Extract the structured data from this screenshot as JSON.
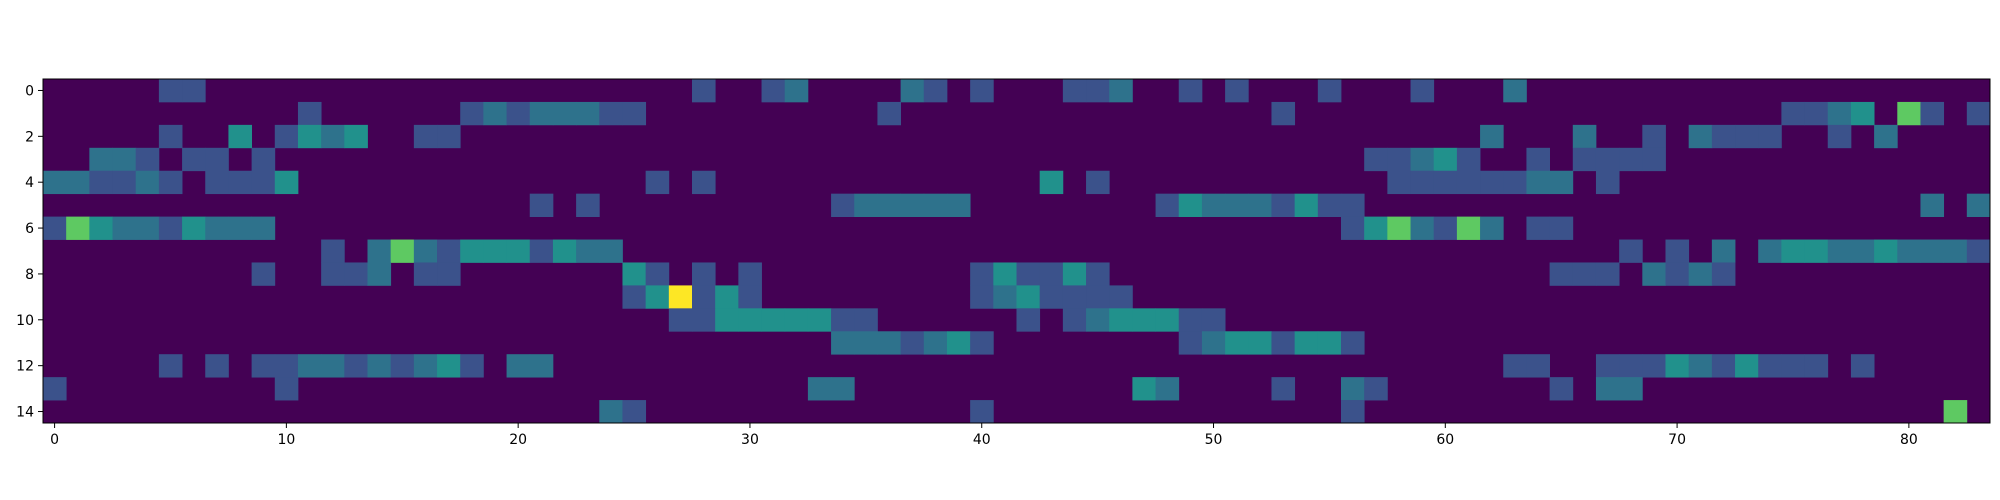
{
  "chart_data": {
    "type": "heatmap",
    "title": "",
    "xlabel": "",
    "ylabel": "",
    "n_rows": 15,
    "n_cols": 84,
    "x_ticks": [
      0,
      10,
      20,
      30,
      40,
      50,
      60,
      70,
      80
    ],
    "y_ticks": [
      0,
      2,
      4,
      6,
      8,
      10,
      12,
      14
    ],
    "vmin": 0,
    "vmax": 8,
    "colormap": "viridis",
    "colormap_stops": [
      "#440154",
      "#3b528b",
      "#21918c",
      "#5ec962",
      "#fde725"
    ],
    "grid": false,
    "cells": [
      {
        "r": 0,
        "c": 5,
        "v": 2
      },
      {
        "r": 0,
        "c": 6,
        "v": 2
      },
      {
        "r": 0,
        "c": 28,
        "v": 2
      },
      {
        "r": 0,
        "c": 31,
        "v": 2
      },
      {
        "r": 0,
        "c": 32,
        "v": 3
      },
      {
        "r": 0,
        "c": 37,
        "v": 3
      },
      {
        "r": 0,
        "c": 38,
        "v": 2
      },
      {
        "r": 0,
        "c": 40,
        "v": 2
      },
      {
        "r": 0,
        "c": 44,
        "v": 2
      },
      {
        "r": 0,
        "c": 45,
        "v": 2
      },
      {
        "r": 0,
        "c": 46,
        "v": 3
      },
      {
        "r": 0,
        "c": 49,
        "v": 2
      },
      {
        "r": 0,
        "c": 51,
        "v": 2
      },
      {
        "r": 0,
        "c": 55,
        "v": 2
      },
      {
        "r": 0,
        "c": 59,
        "v": 2
      },
      {
        "r": 0,
        "c": 63,
        "v": 3
      },
      {
        "r": 1,
        "c": 11,
        "v": 2
      },
      {
        "r": 1,
        "c": 18,
        "v": 2
      },
      {
        "r": 1,
        "c": 19,
        "v": 3
      },
      {
        "r": 1,
        "c": 20,
        "v": 2
      },
      {
        "r": 1,
        "c": 21,
        "v": 3
      },
      {
        "r": 1,
        "c": 22,
        "v": 3
      },
      {
        "r": 1,
        "c": 23,
        "v": 3
      },
      {
        "r": 1,
        "c": 24,
        "v": 2
      },
      {
        "r": 1,
        "c": 25,
        "v": 2
      },
      {
        "r": 1,
        "c": 36,
        "v": 2
      },
      {
        "r": 1,
        "c": 53,
        "v": 2
      },
      {
        "r": 1,
        "c": 75,
        "v": 2
      },
      {
        "r": 1,
        "c": 76,
        "v": 2
      },
      {
        "r": 1,
        "c": 77,
        "v": 3
      },
      {
        "r": 1,
        "c": 78,
        "v": 4
      },
      {
        "r": 1,
        "c": 80,
        "v": 6
      },
      {
        "r": 1,
        "c": 81,
        "v": 2
      },
      {
        "r": 1,
        "c": 83,
        "v": 2
      },
      {
        "r": 2,
        "c": 5,
        "v": 2
      },
      {
        "r": 2,
        "c": 8,
        "v": 4
      },
      {
        "r": 2,
        "c": 10,
        "v": 2
      },
      {
        "r": 2,
        "c": 11,
        "v": 4
      },
      {
        "r": 2,
        "c": 12,
        "v": 3
      },
      {
        "r": 2,
        "c": 13,
        "v": 4
      },
      {
        "r": 2,
        "c": 16,
        "v": 2
      },
      {
        "r": 2,
        "c": 17,
        "v": 2
      },
      {
        "r": 2,
        "c": 62,
        "v": 3
      },
      {
        "r": 2,
        "c": 66,
        "v": 3
      },
      {
        "r": 2,
        "c": 69,
        "v": 2
      },
      {
        "r": 2,
        "c": 71,
        "v": 3
      },
      {
        "r": 2,
        "c": 72,
        "v": 2
      },
      {
        "r": 2,
        "c": 73,
        "v": 2
      },
      {
        "r": 2,
        "c": 74,
        "v": 2
      },
      {
        "r": 2,
        "c": 77,
        "v": 2
      },
      {
        "r": 2,
        "c": 79,
        "v": 3
      },
      {
        "r": 3,
        "c": 2,
        "v": 3
      },
      {
        "r": 3,
        "c": 3,
        "v": 3
      },
      {
        "r": 3,
        "c": 4,
        "v": 2
      },
      {
        "r": 3,
        "c": 6,
        "v": 2
      },
      {
        "r": 3,
        "c": 7,
        "v": 2
      },
      {
        "r": 3,
        "c": 9,
        "v": 2
      },
      {
        "r": 3,
        "c": 57,
        "v": 2
      },
      {
        "r": 3,
        "c": 58,
        "v": 2
      },
      {
        "r": 3,
        "c": 59,
        "v": 3
      },
      {
        "r": 3,
        "c": 60,
        "v": 4
      },
      {
        "r": 3,
        "c": 61,
        "v": 2
      },
      {
        "r": 3,
        "c": 64,
        "v": 2
      },
      {
        "r": 3,
        "c": 66,
        "v": 2
      },
      {
        "r": 3,
        "c": 67,
        "v": 2
      },
      {
        "r": 3,
        "c": 68,
        "v": 2
      },
      {
        "r": 3,
        "c": 69,
        "v": 2
      },
      {
        "r": 4,
        "c": 0,
        "v": 3
      },
      {
        "r": 4,
        "c": 1,
        "v": 3
      },
      {
        "r": 4,
        "c": 2,
        "v": 2
      },
      {
        "r": 4,
        "c": 3,
        "v": 2
      },
      {
        "r": 4,
        "c": 4,
        "v": 3
      },
      {
        "r": 4,
        "c": 5,
        "v": 2
      },
      {
        "r": 4,
        "c": 7,
        "v": 2
      },
      {
        "r": 4,
        "c": 8,
        "v": 2
      },
      {
        "r": 4,
        "c": 9,
        "v": 2
      },
      {
        "r": 4,
        "c": 10,
        "v": 4
      },
      {
        "r": 4,
        "c": 26,
        "v": 2
      },
      {
        "r": 4,
        "c": 28,
        "v": 2
      },
      {
        "r": 4,
        "c": 43,
        "v": 4
      },
      {
        "r": 4,
        "c": 45,
        "v": 2
      },
      {
        "r": 4,
        "c": 58,
        "v": 2
      },
      {
        "r": 4,
        "c": 59,
        "v": 2
      },
      {
        "r": 4,
        "c": 60,
        "v": 2
      },
      {
        "r": 4,
        "c": 61,
        "v": 2
      },
      {
        "r": 4,
        "c": 62,
        "v": 2
      },
      {
        "r": 4,
        "c": 63,
        "v": 2
      },
      {
        "r": 4,
        "c": 64,
        "v": 3
      },
      {
        "r": 4,
        "c": 65,
        "v": 3
      },
      {
        "r": 4,
        "c": 67,
        "v": 2
      },
      {
        "r": 5,
        "c": 21,
        "v": 2
      },
      {
        "r": 5,
        "c": 23,
        "v": 2
      },
      {
        "r": 5,
        "c": 34,
        "v": 2
      },
      {
        "r": 5,
        "c": 35,
        "v": 3
      },
      {
        "r": 5,
        "c": 36,
        "v": 3
      },
      {
        "r": 5,
        "c": 37,
        "v": 3
      },
      {
        "r": 5,
        "c": 38,
        "v": 3
      },
      {
        "r": 5,
        "c": 39,
        "v": 3
      },
      {
        "r": 5,
        "c": 48,
        "v": 2
      },
      {
        "r": 5,
        "c": 49,
        "v": 4
      },
      {
        "r": 5,
        "c": 50,
        "v": 3
      },
      {
        "r": 5,
        "c": 51,
        "v": 3
      },
      {
        "r": 5,
        "c": 52,
        "v": 3
      },
      {
        "r": 5,
        "c": 53,
        "v": 2
      },
      {
        "r": 5,
        "c": 54,
        "v": 4
      },
      {
        "r": 5,
        "c": 55,
        "v": 2
      },
      {
        "r": 5,
        "c": 56,
        "v": 2
      },
      {
        "r": 5,
        "c": 81,
        "v": 3
      },
      {
        "r": 5,
        "c": 83,
        "v": 3
      },
      {
        "r": 6,
        "c": 0,
        "v": 2
      },
      {
        "r": 6,
        "c": 1,
        "v": 6
      },
      {
        "r": 6,
        "c": 2,
        "v": 4
      },
      {
        "r": 6,
        "c": 3,
        "v": 3
      },
      {
        "r": 6,
        "c": 4,
        "v": 3
      },
      {
        "r": 6,
        "c": 5,
        "v": 2
      },
      {
        "r": 6,
        "c": 6,
        "v": 4
      },
      {
        "r": 6,
        "c": 7,
        "v": 3
      },
      {
        "r": 6,
        "c": 8,
        "v": 3
      },
      {
        "r": 6,
        "c": 9,
        "v": 3
      },
      {
        "r": 6,
        "c": 56,
        "v": 2
      },
      {
        "r": 6,
        "c": 57,
        "v": 4
      },
      {
        "r": 6,
        "c": 58,
        "v": 6
      },
      {
        "r": 6,
        "c": 59,
        "v": 3
      },
      {
        "r": 6,
        "c": 60,
        "v": 2
      },
      {
        "r": 6,
        "c": 61,
        "v": 6
      },
      {
        "r": 6,
        "c": 62,
        "v": 3
      },
      {
        "r": 6,
        "c": 64,
        "v": 2
      },
      {
        "r": 6,
        "c": 65,
        "v": 2
      },
      {
        "r": 7,
        "c": 12,
        "v": 2
      },
      {
        "r": 7,
        "c": 14,
        "v": 3
      },
      {
        "r": 7,
        "c": 15,
        "v": 6
      },
      {
        "r": 7,
        "c": 16,
        "v": 3
      },
      {
        "r": 7,
        "c": 17,
        "v": 2
      },
      {
        "r": 7,
        "c": 18,
        "v": 4
      },
      {
        "r": 7,
        "c": 19,
        "v": 4
      },
      {
        "r": 7,
        "c": 20,
        "v": 4
      },
      {
        "r": 7,
        "c": 21,
        "v": 2
      },
      {
        "r": 7,
        "c": 22,
        "v": 4
      },
      {
        "r": 7,
        "c": 23,
        "v": 3
      },
      {
        "r": 7,
        "c": 24,
        "v": 3
      },
      {
        "r": 7,
        "c": 68,
        "v": 2
      },
      {
        "r": 7,
        "c": 70,
        "v": 2
      },
      {
        "r": 7,
        "c": 72,
        "v": 3
      },
      {
        "r": 7,
        "c": 74,
        "v": 3
      },
      {
        "r": 7,
        "c": 75,
        "v": 4
      },
      {
        "r": 7,
        "c": 76,
        "v": 4
      },
      {
        "r": 7,
        "c": 77,
        "v": 3
      },
      {
        "r": 7,
        "c": 78,
        "v": 3
      },
      {
        "r": 7,
        "c": 79,
        "v": 4
      },
      {
        "r": 7,
        "c": 80,
        "v": 3
      },
      {
        "r": 7,
        "c": 81,
        "v": 3
      },
      {
        "r": 7,
        "c": 82,
        "v": 3
      },
      {
        "r": 7,
        "c": 83,
        "v": 2
      },
      {
        "r": 8,
        "c": 9,
        "v": 2
      },
      {
        "r": 8,
        "c": 12,
        "v": 2
      },
      {
        "r": 8,
        "c": 13,
        "v": 2
      },
      {
        "r": 8,
        "c": 14,
        "v": 3
      },
      {
        "r": 8,
        "c": 16,
        "v": 2
      },
      {
        "r": 8,
        "c": 17,
        "v": 2
      },
      {
        "r": 8,
        "c": 25,
        "v": 4
      },
      {
        "r": 8,
        "c": 26,
        "v": 2
      },
      {
        "r": 8,
        "c": 28,
        "v": 2
      },
      {
        "r": 8,
        "c": 30,
        "v": 2
      },
      {
        "r": 8,
        "c": 40,
        "v": 2
      },
      {
        "r": 8,
        "c": 41,
        "v": 4
      },
      {
        "r": 8,
        "c": 42,
        "v": 2
      },
      {
        "r": 8,
        "c": 43,
        "v": 2
      },
      {
        "r": 8,
        "c": 44,
        "v": 4
      },
      {
        "r": 8,
        "c": 45,
        "v": 2
      },
      {
        "r": 8,
        "c": 65,
        "v": 2
      },
      {
        "r": 8,
        "c": 66,
        "v": 2
      },
      {
        "r": 8,
        "c": 67,
        "v": 2
      },
      {
        "r": 8,
        "c": 69,
        "v": 3
      },
      {
        "r": 8,
        "c": 70,
        "v": 2
      },
      {
        "r": 8,
        "c": 71,
        "v": 3
      },
      {
        "r": 8,
        "c": 72,
        "v": 2
      },
      {
        "r": 9,
        "c": 25,
        "v": 2
      },
      {
        "r": 9,
        "c": 26,
        "v": 4
      },
      {
        "r": 9,
        "c": 27,
        "v": 8
      },
      {
        "r": 9,
        "c": 28,
        "v": 2
      },
      {
        "r": 9,
        "c": 29,
        "v": 4
      },
      {
        "r": 9,
        "c": 30,
        "v": 2
      },
      {
        "r": 9,
        "c": 40,
        "v": 2
      },
      {
        "r": 9,
        "c": 41,
        "v": 3
      },
      {
        "r": 9,
        "c": 42,
        "v": 4
      },
      {
        "r": 9,
        "c": 43,
        "v": 2
      },
      {
        "r": 9,
        "c": 44,
        "v": 2
      },
      {
        "r": 9,
        "c": 45,
        "v": 2
      },
      {
        "r": 9,
        "c": 46,
        "v": 2
      },
      {
        "r": 10,
        "c": 27,
        "v": 2
      },
      {
        "r": 10,
        "c": 28,
        "v": 2
      },
      {
        "r": 10,
        "c": 29,
        "v": 4
      },
      {
        "r": 10,
        "c": 30,
        "v": 4
      },
      {
        "r": 10,
        "c": 31,
        "v": 4
      },
      {
        "r": 10,
        "c": 32,
        "v": 4
      },
      {
        "r": 10,
        "c": 33,
        "v": 4
      },
      {
        "r": 10,
        "c": 34,
        "v": 2
      },
      {
        "r": 10,
        "c": 35,
        "v": 2
      },
      {
        "r": 10,
        "c": 42,
        "v": 2
      },
      {
        "r": 10,
        "c": 44,
        "v": 2
      },
      {
        "r": 10,
        "c": 45,
        "v": 3
      },
      {
        "r": 10,
        "c": 46,
        "v": 4
      },
      {
        "r": 10,
        "c": 47,
        "v": 4
      },
      {
        "r": 10,
        "c": 48,
        "v": 4
      },
      {
        "r": 10,
        "c": 49,
        "v": 2
      },
      {
        "r": 10,
        "c": 50,
        "v": 2
      },
      {
        "r": 11,
        "c": 34,
        "v": 3
      },
      {
        "r": 11,
        "c": 35,
        "v": 3
      },
      {
        "r": 11,
        "c": 36,
        "v": 3
      },
      {
        "r": 11,
        "c": 37,
        "v": 2
      },
      {
        "r": 11,
        "c": 38,
        "v": 3
      },
      {
        "r": 11,
        "c": 39,
        "v": 4
      },
      {
        "r": 11,
        "c": 40,
        "v": 2
      },
      {
        "r": 11,
        "c": 49,
        "v": 2
      },
      {
        "r": 11,
        "c": 50,
        "v": 3
      },
      {
        "r": 11,
        "c": 51,
        "v": 4
      },
      {
        "r": 11,
        "c": 52,
        "v": 4
      },
      {
        "r": 11,
        "c": 53,
        "v": 2
      },
      {
        "r": 11,
        "c": 54,
        "v": 4
      },
      {
        "r": 11,
        "c": 55,
        "v": 4
      },
      {
        "r": 11,
        "c": 56,
        "v": 2
      },
      {
        "r": 12,
        "c": 5,
        "v": 2
      },
      {
        "r": 12,
        "c": 7,
        "v": 2
      },
      {
        "r": 12,
        "c": 9,
        "v": 2
      },
      {
        "r": 12,
        "c": 10,
        "v": 2
      },
      {
        "r": 12,
        "c": 11,
        "v": 3
      },
      {
        "r": 12,
        "c": 12,
        "v": 3
      },
      {
        "r": 12,
        "c": 13,
        "v": 2
      },
      {
        "r": 12,
        "c": 14,
        "v": 3
      },
      {
        "r": 12,
        "c": 15,
        "v": 2
      },
      {
        "r": 12,
        "c": 16,
        "v": 3
      },
      {
        "r": 12,
        "c": 17,
        "v": 4
      },
      {
        "r": 12,
        "c": 18,
        "v": 2
      },
      {
        "r": 12,
        "c": 20,
        "v": 3
      },
      {
        "r": 12,
        "c": 21,
        "v": 3
      },
      {
        "r": 12,
        "c": 63,
        "v": 2
      },
      {
        "r": 12,
        "c": 64,
        "v": 2
      },
      {
        "r": 12,
        "c": 67,
        "v": 2
      },
      {
        "r": 12,
        "c": 68,
        "v": 2
      },
      {
        "r": 12,
        "c": 69,
        "v": 2
      },
      {
        "r": 12,
        "c": 70,
        "v": 4
      },
      {
        "r": 12,
        "c": 71,
        "v": 3
      },
      {
        "r": 12,
        "c": 72,
        "v": 2
      },
      {
        "r": 12,
        "c": 73,
        "v": 4
      },
      {
        "r": 12,
        "c": 74,
        "v": 2
      },
      {
        "r": 12,
        "c": 75,
        "v": 2
      },
      {
        "r": 12,
        "c": 76,
        "v": 2
      },
      {
        "r": 12,
        "c": 78,
        "v": 2
      },
      {
        "r": 13,
        "c": 0,
        "v": 2
      },
      {
        "r": 13,
        "c": 10,
        "v": 2
      },
      {
        "r": 13,
        "c": 33,
        "v": 3
      },
      {
        "r": 13,
        "c": 34,
        "v": 3
      },
      {
        "r": 13,
        "c": 47,
        "v": 4
      },
      {
        "r": 13,
        "c": 48,
        "v": 3
      },
      {
        "r": 13,
        "c": 53,
        "v": 2
      },
      {
        "r": 13,
        "c": 56,
        "v": 3
      },
      {
        "r": 13,
        "c": 57,
        "v": 2
      },
      {
        "r": 13,
        "c": 65,
        "v": 2
      },
      {
        "r": 13,
        "c": 67,
        "v": 3
      },
      {
        "r": 13,
        "c": 68,
        "v": 3
      },
      {
        "r": 14,
        "c": 24,
        "v": 3
      },
      {
        "r": 14,
        "c": 25,
        "v": 2
      },
      {
        "r": 14,
        "c": 40,
        "v": 2
      },
      {
        "r": 14,
        "c": 56,
        "v": 2
      },
      {
        "r": 14,
        "c": 82,
        "v": 6
      }
    ]
  }
}
